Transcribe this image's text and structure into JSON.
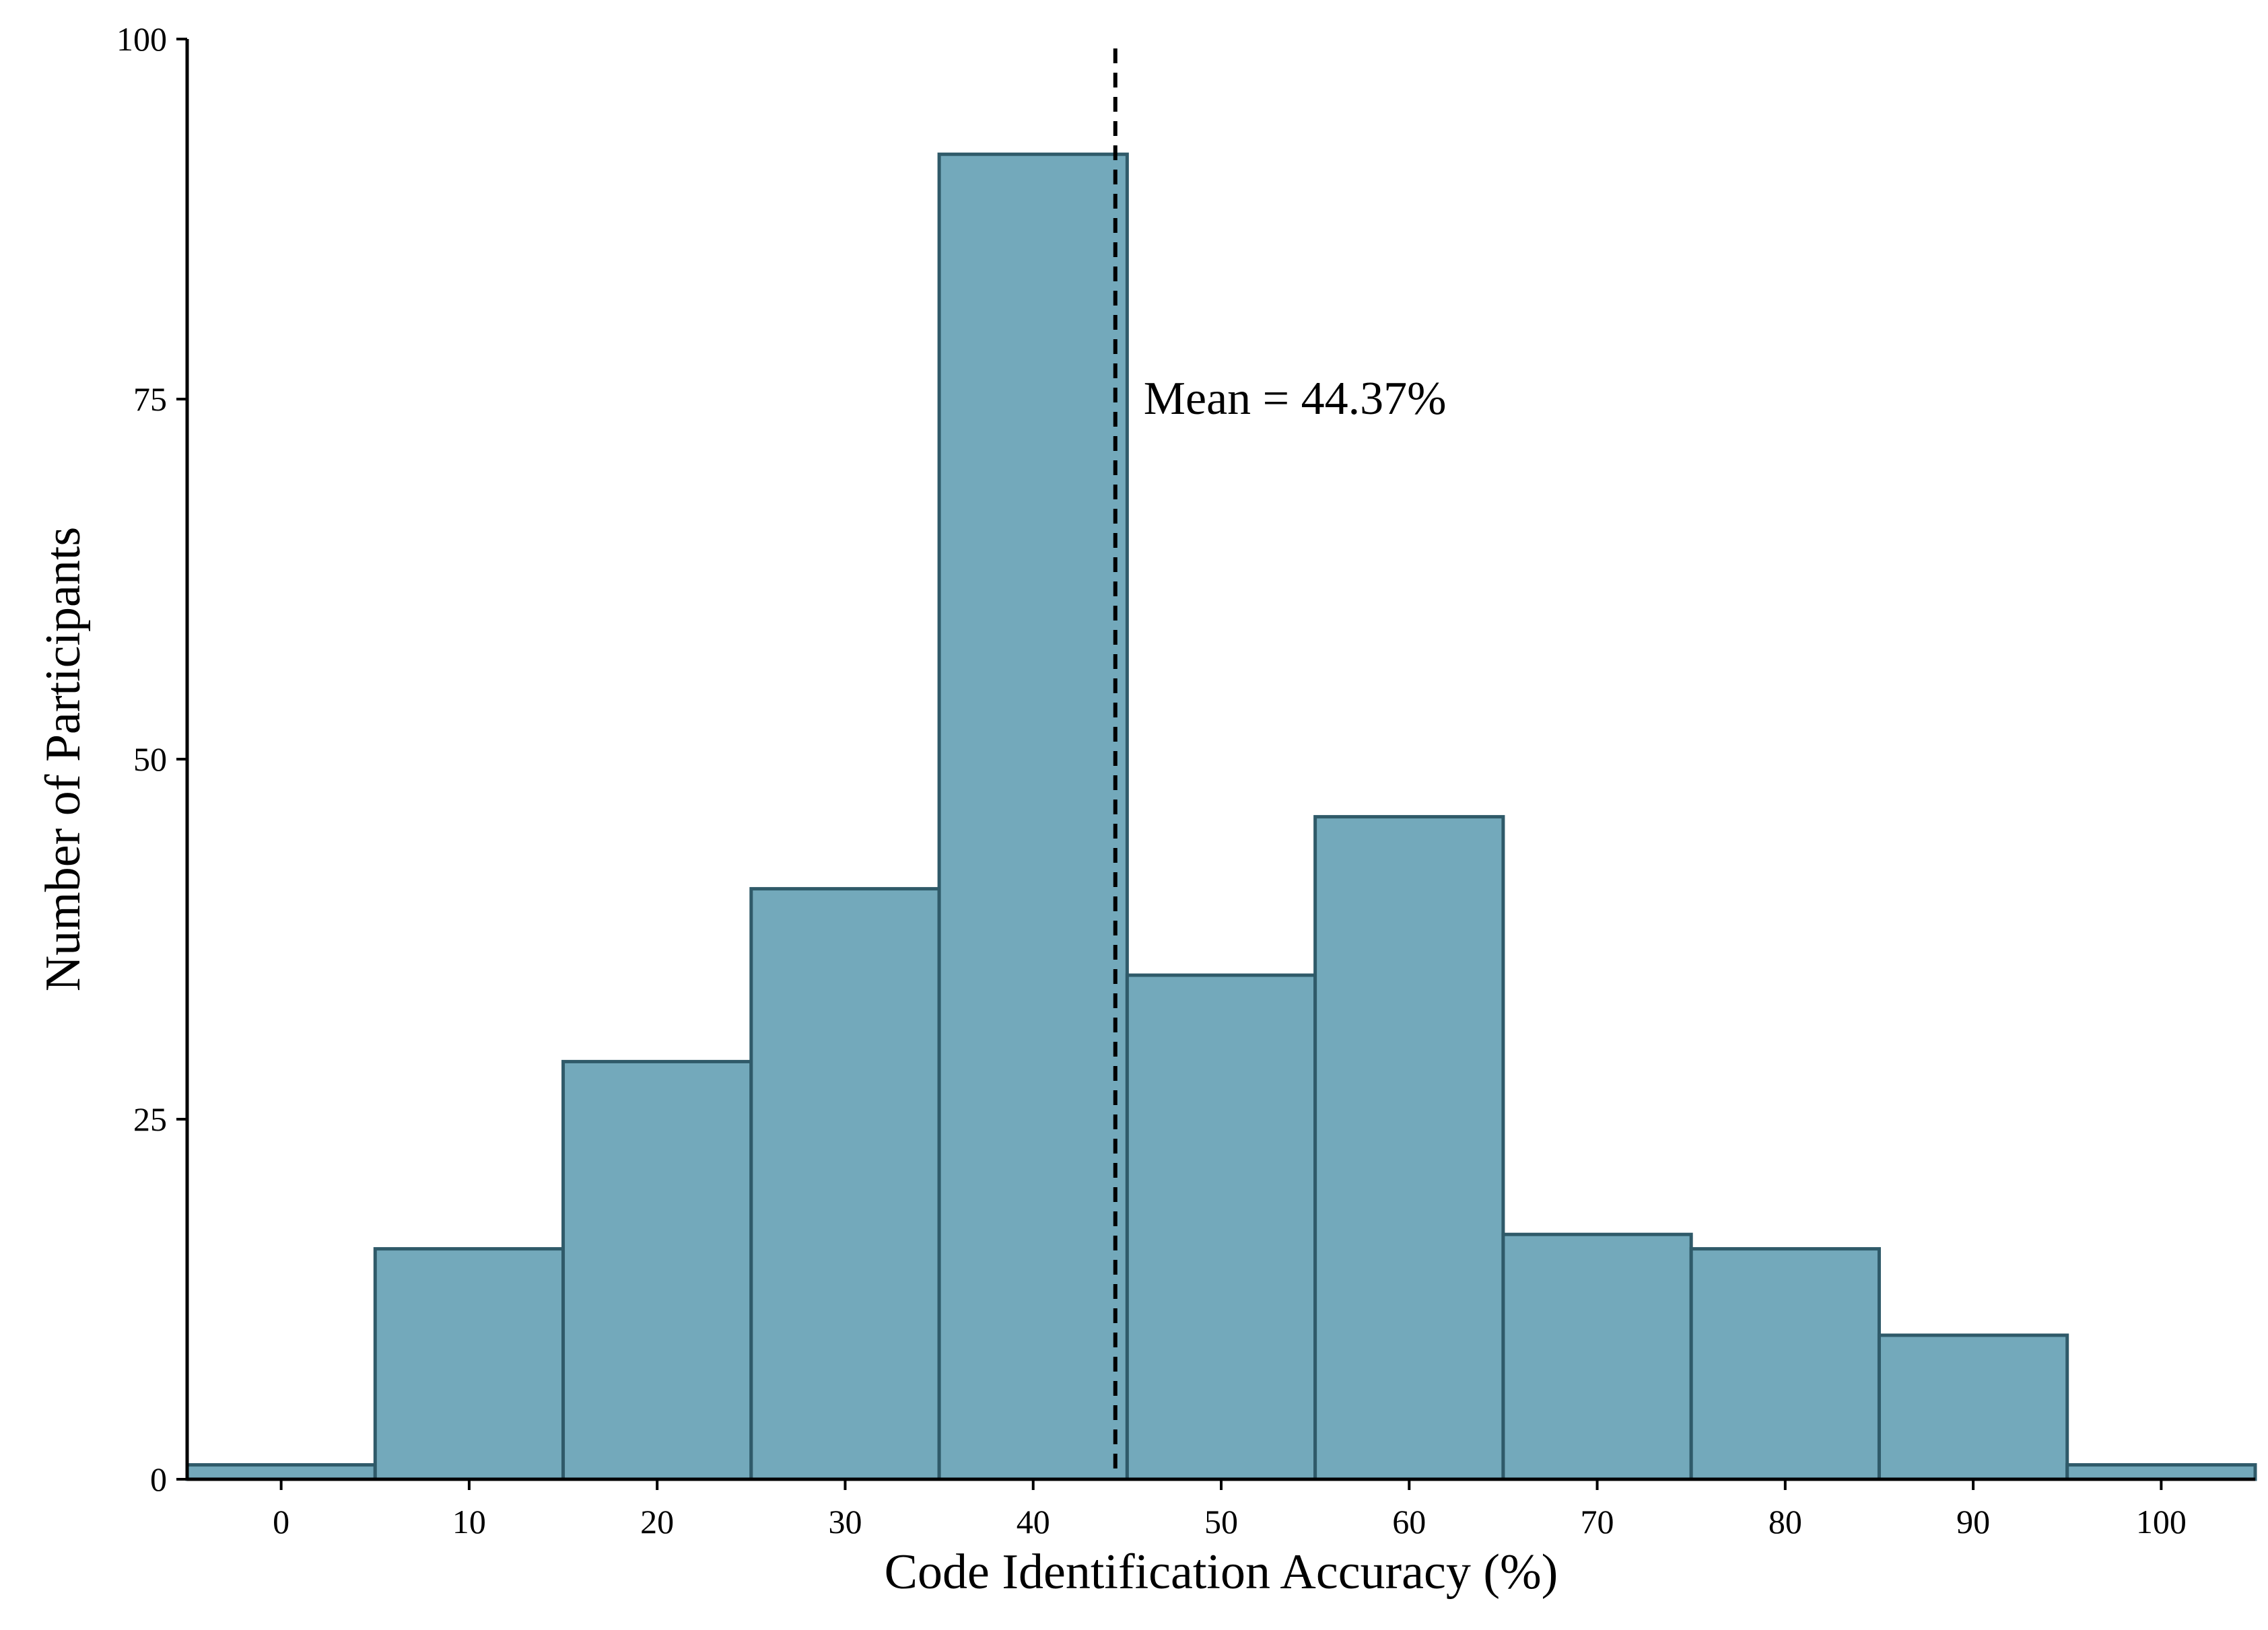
{
  "chart_data": {
    "type": "bar",
    "subtype": "histogram",
    "title": "",
    "xlabel": "Code Identification Accuracy (%)",
    "ylabel": "Number of Participants",
    "bin_width": 10,
    "bins": [
      {
        "center": 0,
        "value": 1
      },
      {
        "center": 10,
        "value": 16
      },
      {
        "center": 20,
        "value": 29
      },
      {
        "center": 30,
        "value": 41
      },
      {
        "center": 40,
        "value": 92
      },
      {
        "center": 50,
        "value": 35
      },
      {
        "center": 60,
        "value": 46
      },
      {
        "center": 70,
        "value": 17
      },
      {
        "center": 80,
        "value": 16
      },
      {
        "center": 90,
        "value": 10
      },
      {
        "center": 100,
        "value": 1
      }
    ],
    "xlim": [
      -5,
      105
    ],
    "ylim": [
      0,
      100
    ],
    "xticks": [
      0,
      10,
      20,
      30,
      40,
      50,
      60,
      70,
      80,
      90,
      100
    ],
    "yticks": [
      0,
      25,
      50,
      75,
      100
    ],
    "mean": 44.37,
    "mean_label": "Mean = 44.37%",
    "grid": false,
    "legend": "none",
    "colors": {
      "fill": "#73a9bb",
      "edge": "#2f5a69",
      "axis": "#000000",
      "mean_line": "#000000"
    }
  }
}
